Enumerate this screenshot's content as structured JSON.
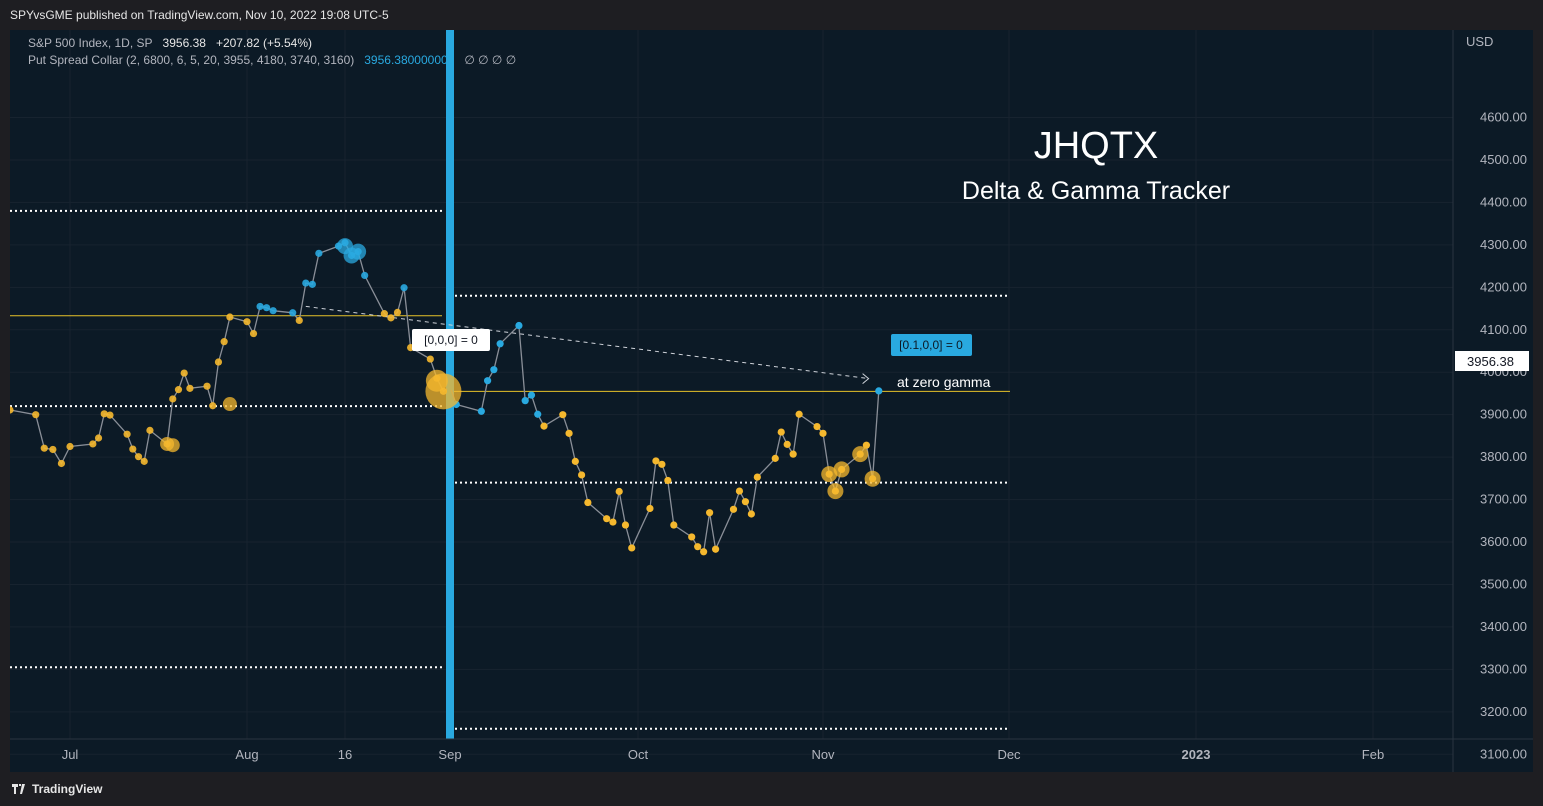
{
  "header": {
    "published": "SPYvsGME published on TradingView.com, Nov 10, 2022 19:08 UTC-5"
  },
  "legend": {
    "symbol": "S&P 500 Index, 1D, SP",
    "price": "3956.38",
    "change": "+207.82 (+5.54%)",
    "indicator": "Put Spread Collar (2, 6800, 6, 5, 20, 3955, 4180, 3740, 3160)",
    "indicator_value": "3956.380000000",
    "indicator_extra": "∅ ∅ ∅ ∅"
  },
  "overlay": {
    "title": "JHQTX",
    "subtitle": "Delta & Gamma Tracker",
    "label_left": "[0,0,0] = 0",
    "label_right": "[0.1,0,0] = 0",
    "note": "at zero gamma"
  },
  "axis": {
    "currency": "USD",
    "price_tag": "3956.38"
  },
  "footer": {
    "brand": "TradingView"
  },
  "colors": {
    "background": "#0c1a26",
    "blue": "#29a9e0",
    "gold": "#f5b82e",
    "line": "#8a8f98",
    "level": "#e6c229"
  },
  "chart_data": {
    "type": "line",
    "symbol": "S&P 500 Index",
    "x_ticks": [
      "Jul",
      "Aug",
      "16",
      "Sep",
      "Oct",
      "Nov",
      "Dec",
      "2023",
      "Feb"
    ],
    "y_ticks": [
      "3100.00",
      "3200.00",
      "3300.00",
      "3400.00",
      "3500.00",
      "3600.00",
      "3700.00",
      "3800.00",
      "3900.00",
      "4000.00",
      "4100.00",
      "4200.00",
      "4300.00",
      "4400.00",
      "4500.00",
      "4600.00"
    ],
    "ylim": [
      3070,
      4700
    ],
    "series": [
      {
        "x": [
          "2022-06-24",
          "2022-06-27",
          "2022-06-28",
          "2022-06-29",
          "2022-06-30",
          "2022-07-01",
          "2022-07-05",
          "2022-07-06",
          "2022-07-07",
          "2022-07-08",
          "2022-07-11",
          "2022-07-12",
          "2022-07-13",
          "2022-07-14",
          "2022-07-15",
          "2022-07-18",
          "2022-07-19",
          "2022-07-20",
          "2022-07-21",
          "2022-07-22",
          "2022-07-25",
          "2022-07-26",
          "2022-07-27",
          "2022-07-28",
          "2022-07-29",
          "2022-08-01",
          "2022-08-02",
          "2022-08-03",
          "2022-08-04",
          "2022-08-05",
          "2022-08-08",
          "2022-08-09",
          "2022-08-10",
          "2022-08-11",
          "2022-08-12",
          "2022-08-15",
          "2022-08-16",
          "2022-08-17",
          "2022-08-18",
          "2022-08-19",
          "2022-08-22",
          "2022-08-23",
          "2022-08-24",
          "2022-08-25",
          "2022-08-26",
          "2022-08-29",
          "2022-08-30",
          "2022-08-31",
          "2022-09-01",
          "2022-09-02",
          "2022-09-06",
          "2022-09-07",
          "2022-09-08",
          "2022-09-09",
          "2022-09-12",
          "2022-09-13",
          "2022-09-14",
          "2022-09-15",
          "2022-09-16",
          "2022-09-19",
          "2022-09-20",
          "2022-09-21",
          "2022-09-22",
          "2022-09-23",
          "2022-09-26",
          "2022-09-27",
          "2022-09-28",
          "2022-09-29",
          "2022-09-30",
          "2022-10-03",
          "2022-10-04",
          "2022-10-05",
          "2022-10-06",
          "2022-10-07",
          "2022-10-10",
          "2022-10-11",
          "2022-10-12",
          "2022-10-13",
          "2022-10-14",
          "2022-10-17",
          "2022-10-18",
          "2022-10-19",
          "2022-10-20",
          "2022-10-21",
          "2022-10-24",
          "2022-10-25",
          "2022-10-26",
          "2022-10-27",
          "2022-10-28",
          "2022-10-31",
          "2022-11-01",
          "2022-11-02",
          "2022-11-03",
          "2022-11-04",
          "2022-11-07",
          "2022-11-08",
          "2022-11-09",
          "2022-11-10"
        ],
        "values": [
          3911,
          3900,
          3821,
          3818,
          3785,
          3825,
          3831,
          3845,
          3902,
          3899,
          3854,
          3819,
          3801,
          3790,
          3863,
          3831,
          3937,
          3959,
          3998,
          3962,
          3967,
          3921,
          4024,
          4072,
          4130,
          4119,
          4091,
          4155,
          4152,
          4145,
          4140,
          4122,
          4210,
          4207,
          4280,
          4297,
          4305,
          4275,
          4284,
          4228,
          4138,
          4128,
          4141,
          4199,
          4058,
          4031,
          3986,
          3955,
          3966,
          3924,
          3908,
          3980,
          4006,
          4067,
          4110,
          3933,
          3946,
          3901,
          3873,
          3900,
          3856,
          3790,
          3758,
          3693,
          3655,
          3647,
          3719,
          3640,
          3586,
          3679,
          3791,
          3783,
          3745,
          3640,
          3612,
          3589,
          3577,
          3669,
          3583,
          3677,
          3720,
          3695,
          3666,
          3753,
          3797,
          3859,
          3830,
          3807,
          3901,
          3872,
          3856,
          3760,
          3720,
          3771,
          3807,
          3828,
          3749,
          3956
        ],
        "point_colors": [
          "gold",
          "gold",
          "gold",
          "gold",
          "gold",
          "gold",
          "gold",
          "gold",
          "gold",
          "gold",
          "gold",
          "gold",
          "gold",
          "gold",
          "gold",
          "gold",
          "gold",
          "gold",
          "gold",
          "gold",
          "gold",
          "gold",
          "gold",
          "gold",
          "gold",
          "gold",
          "gold",
          "blue",
          "blue",
          "blue",
          "blue",
          "gold",
          "blue",
          "blue",
          "blue",
          "blue",
          "blue",
          "blue",
          "blue",
          "blue",
          "gold",
          "gold",
          "gold",
          "blue",
          "gold",
          "gold",
          "gold",
          "gold",
          "blue",
          "blue",
          "blue",
          "blue",
          "blue",
          "blue",
          "blue",
          "blue",
          "blue",
          "blue",
          "gold",
          "gold",
          "gold",
          "gold",
          "gold",
          "gold",
          "gold",
          "gold",
          "gold",
          "gold",
          "gold",
          "gold",
          "gold",
          "gold",
          "gold",
          "gold",
          "gold",
          "gold",
          "gold",
          "gold",
          "gold",
          "gold",
          "gold",
          "gold",
          "gold",
          "gold",
          "gold",
          "gold",
          "gold",
          "gold",
          "gold",
          "gold",
          "gold",
          "gold",
          "gold",
          "gold",
          "gold",
          "gold",
          "gold",
          "blue"
        ]
      }
    ],
    "levels": [
      {
        "price": 4380,
        "style": "dotted",
        "span": "left"
      },
      {
        "price": 3920,
        "style": "dotted",
        "span": "left"
      },
      {
        "price": 3305,
        "style": "dotted",
        "span": "left"
      },
      {
        "price": 4133,
        "style": "solid",
        "span": "left"
      },
      {
        "price": 4180,
        "style": "dotted",
        "span": "right"
      },
      {
        "price": 3955,
        "style": "solid",
        "span": "right"
      },
      {
        "price": 3740,
        "style": "dotted",
        "span": "right"
      },
      {
        "price": 3160,
        "style": "dotted",
        "span": "right"
      }
    ],
    "vertical_marker": "2022-09-01",
    "arrow": {
      "from": [
        "2022-08-10",
        4155
      ],
      "to": [
        "2022-11-09",
        3985
      ]
    }
  }
}
